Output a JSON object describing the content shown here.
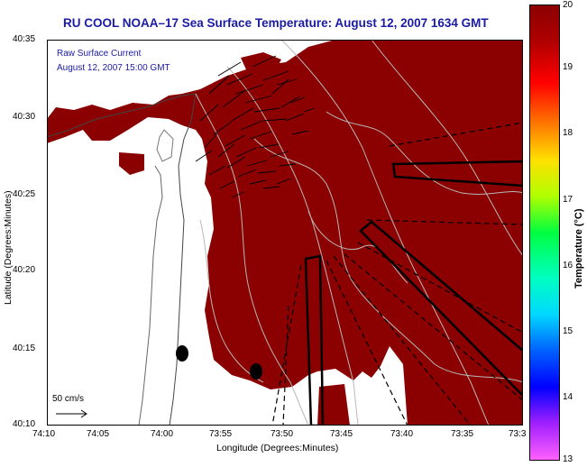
{
  "title": "RU COOL  NOAA–17  Sea Surface Temperature:  August 12, 2007 1634 GMT",
  "inset": {
    "line1": "Raw Surface Current",
    "line2": "August 12, 2007 15:00 GMT"
  },
  "scale_label": "50 cm/s",
  "x_axis": {
    "label": "Longitude (Degrees:Minutes)",
    "ticks": [
      "74:10",
      "74:05",
      "74:00",
      "73:55",
      "73:50",
      "73:45",
      "73:40",
      "73:35",
      "73:3"
    ]
  },
  "y_axis": {
    "label": "Latitude (Degrees:Minutes)",
    "ticks": [
      "40:35",
      "40:30",
      "40:25",
      "40:20",
      "40:15",
      "40:10"
    ]
  },
  "colorbar": {
    "label": "Temperature (°C)",
    "ticks": [
      "20",
      "19",
      "18",
      "17",
      "16",
      "15",
      "14",
      "13"
    ],
    "colors": [
      "#8b0000",
      "#ff0000",
      "#ffff00",
      "#00ff00",
      "#00ffff",
      "#0000ff",
      "#ff00ff"
    ]
  },
  "colors": {
    "sst_fill": "#8b0000",
    "land": "#ffffff",
    "title": "#1a1aa6"
  }
}
